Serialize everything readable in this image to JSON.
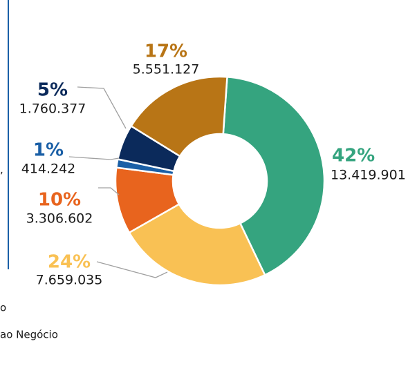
{
  "chart_data": {
    "type": "donut",
    "values": [
      13419901,
      7659035,
      3306602,
      414242,
      1760377,
      5551127
    ],
    "value_labels": [
      "13.419.901",
      "7.659.035",
      "3.306.602",
      "414.242",
      "1.760.377",
      "5.551.127"
    ],
    "percentages": [
      42,
      24,
      10,
      1,
      5,
      17
    ],
    "percentage_labels": [
      "42%",
      "24%",
      "10%",
      "1%",
      "5%",
      "17%"
    ],
    "colors": [
      "#35a47f",
      "#f9c154",
      "#e8641e",
      "#1a5fa6",
      "#0b2a5b",
      "#b87516"
    ]
  },
  "fragments": [
    ",",
    "o",
    "ao Negócio"
  ]
}
